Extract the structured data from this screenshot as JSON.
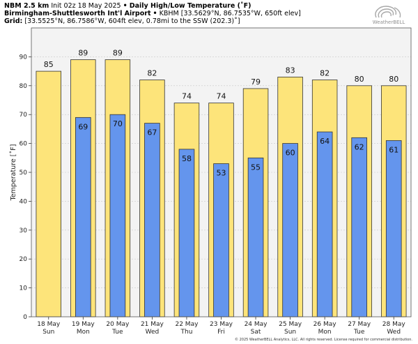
{
  "header": {
    "model": "NBM 2.5 km",
    "init": "Init 02z 18 May 2025",
    "bullet": "•",
    "title": "Daily High/Low Temperature (˚F)",
    "station_name": "Birmingham-Shuttlesworth Int'l Airport",
    "station_info": "KBHM [33.5629°N, 86.7535°W, 650ft elev]",
    "grid_label": "Grid:",
    "grid_info": "[33.5525°N, 86.7586°W, 604ft elev, 0.78mi to the SSW (202.3)˚]"
  },
  "logo": {
    "text": "WeatherBELL",
    "color": "#9a9a9a"
  },
  "copyright": "© 2025 WeatherBELL Analytics, LLC. All rights reserved. License required for commercial distribution.",
  "colors": {
    "high_fill": "#fde47a",
    "low_fill": "#6495ed",
    "plot_bg": "#f3f3f3",
    "grid": "#c8c8c8",
    "bar_edge": "#333333"
  },
  "chart_data": {
    "type": "bar",
    "ylabel": "Temperature [˚F]",
    "ylim": [
      0,
      100
    ],
    "yticks": [
      0,
      10,
      20,
      30,
      40,
      50,
      60,
      70,
      80,
      90
    ],
    "grid": true,
    "categories": [
      [
        "18 May",
        "Sun"
      ],
      [
        "19 May",
        "Mon"
      ],
      [
        "20 May",
        "Tue"
      ],
      [
        "21 May",
        "Wed"
      ],
      [
        "22 May",
        "Thu"
      ],
      [
        "23 May",
        "Fri"
      ],
      [
        "24 May",
        "Sat"
      ],
      [
        "25 May",
        "Sun"
      ],
      [
        "26 May",
        "Mon"
      ],
      [
        "27 May",
        "Tue"
      ],
      [
        "28 May",
        "Wed"
      ]
    ],
    "series": [
      {
        "values": [
          85,
          89,
          89,
          82,
          74,
          74,
          79,
          83,
          82,
          80,
          80
        ]
      },
      {
        "values": [
          null,
          69,
          70,
          67,
          58,
          53,
          55,
          60,
          64,
          62,
          61
        ]
      }
    ]
  }
}
